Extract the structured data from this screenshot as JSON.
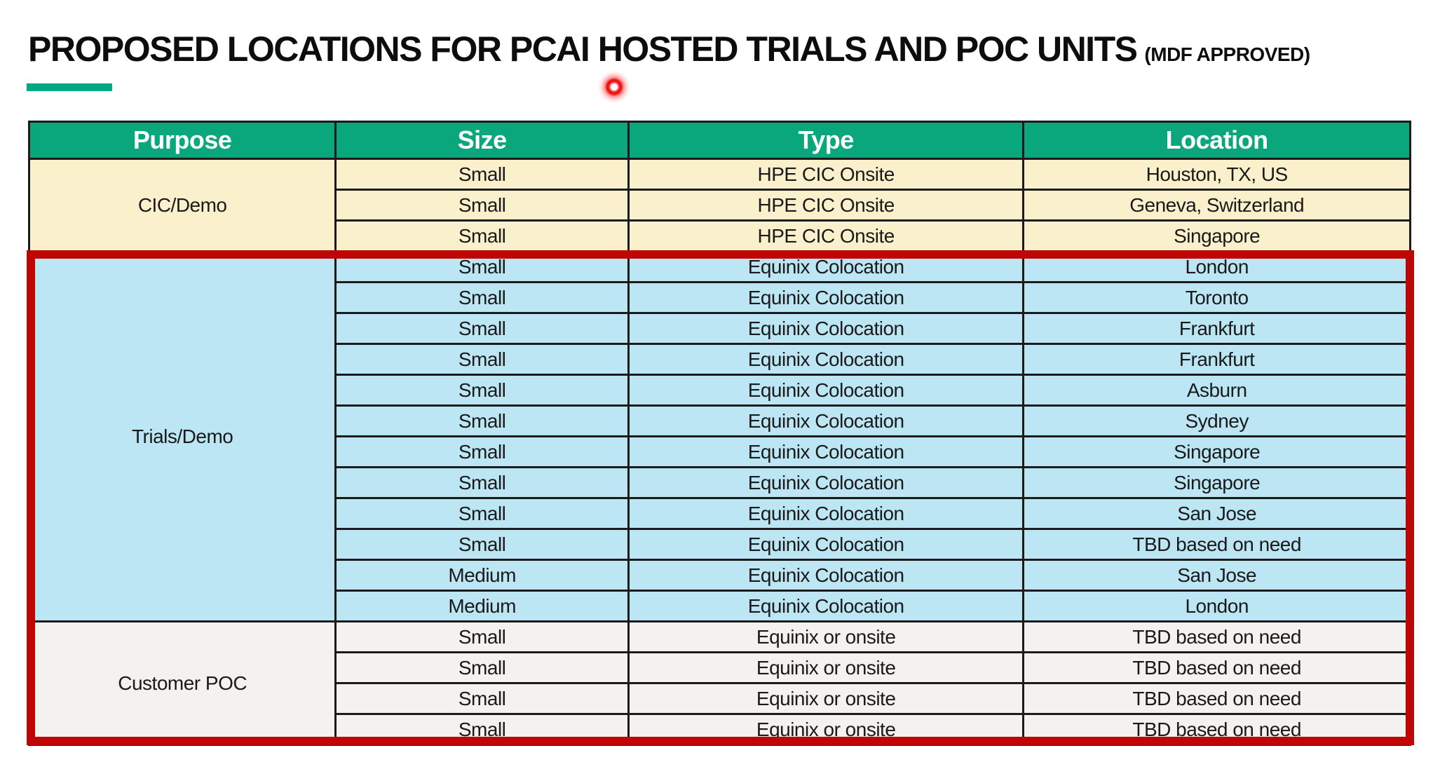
{
  "slide": {
    "title": "PROPOSED LOCATIONS FOR PCAI HOSTED TRIALS AND POC UNITS",
    "title_suffix": "(MDF APPROVED)"
  },
  "colors": {
    "header_green": "#0BA77C",
    "accent_green": "#01A982",
    "section_cic_bg": "#FAF0CC",
    "section_trials_bg": "#BCE6F4",
    "section_poc_bg": "#F3F2F0",
    "highlight_red": "#C00505",
    "laser_red": "#FF2020",
    "border_black": "#1B1B1B"
  },
  "table": {
    "headers": [
      "Purpose",
      "Size",
      "Type",
      "Location"
    ],
    "sections": [
      {
        "purpose": "CIC/Demo",
        "bg_key": "section_cic_bg",
        "rows": [
          [
            "Small",
            "HPE CIC Onsite",
            "Houston, TX, US"
          ],
          [
            "Small",
            "HPE CIC Onsite",
            "Geneva, Switzerland"
          ],
          [
            "Small",
            "HPE CIC Onsite",
            "Singapore"
          ]
        ]
      },
      {
        "purpose": "Trials/Demo",
        "bg_key": "section_trials_bg",
        "rows": [
          [
            "Small",
            "Equinix Colocation",
            "London"
          ],
          [
            "Small",
            "Equinix Colocation",
            "Toronto"
          ],
          [
            "Small",
            "Equinix Colocation",
            "Frankfurt"
          ],
          [
            "Small",
            "Equinix Colocation",
            "Frankfurt"
          ],
          [
            "Small",
            "Equinix Colocation",
            "Asburn"
          ],
          [
            "Small",
            "Equinix Colocation",
            "Sydney"
          ],
          [
            "Small",
            "Equinix Colocation",
            "Singapore"
          ],
          [
            "Small",
            "Equinix Colocation",
            "Singapore"
          ],
          [
            "Small",
            "Equinix Colocation",
            "San Jose"
          ],
          [
            "Small",
            "Equinix Colocation",
            "TBD based on need"
          ],
          [
            "Medium",
            "Equinix Colocation",
            "San Jose"
          ],
          [
            "Medium",
            "Equinix Colocation",
            "London"
          ]
        ]
      },
      {
        "purpose": "Customer POC",
        "bg_key": "section_poc_bg",
        "rows": [
          [
            "Small",
            "Equinix or onsite",
            "TBD based on need"
          ],
          [
            "Small",
            "Equinix or onsite",
            "TBD based on need"
          ],
          [
            "Small",
            "Equinix or onsite",
            "TBD based on need"
          ],
          [
            "Small",
            "Equinix or onsite",
            "TBD based on need"
          ]
        ]
      }
    ]
  },
  "annotations": {
    "highlight_box_label": "red-rectangle-highlight",
    "laser_pointer_label": "laser-pointer-dot"
  }
}
